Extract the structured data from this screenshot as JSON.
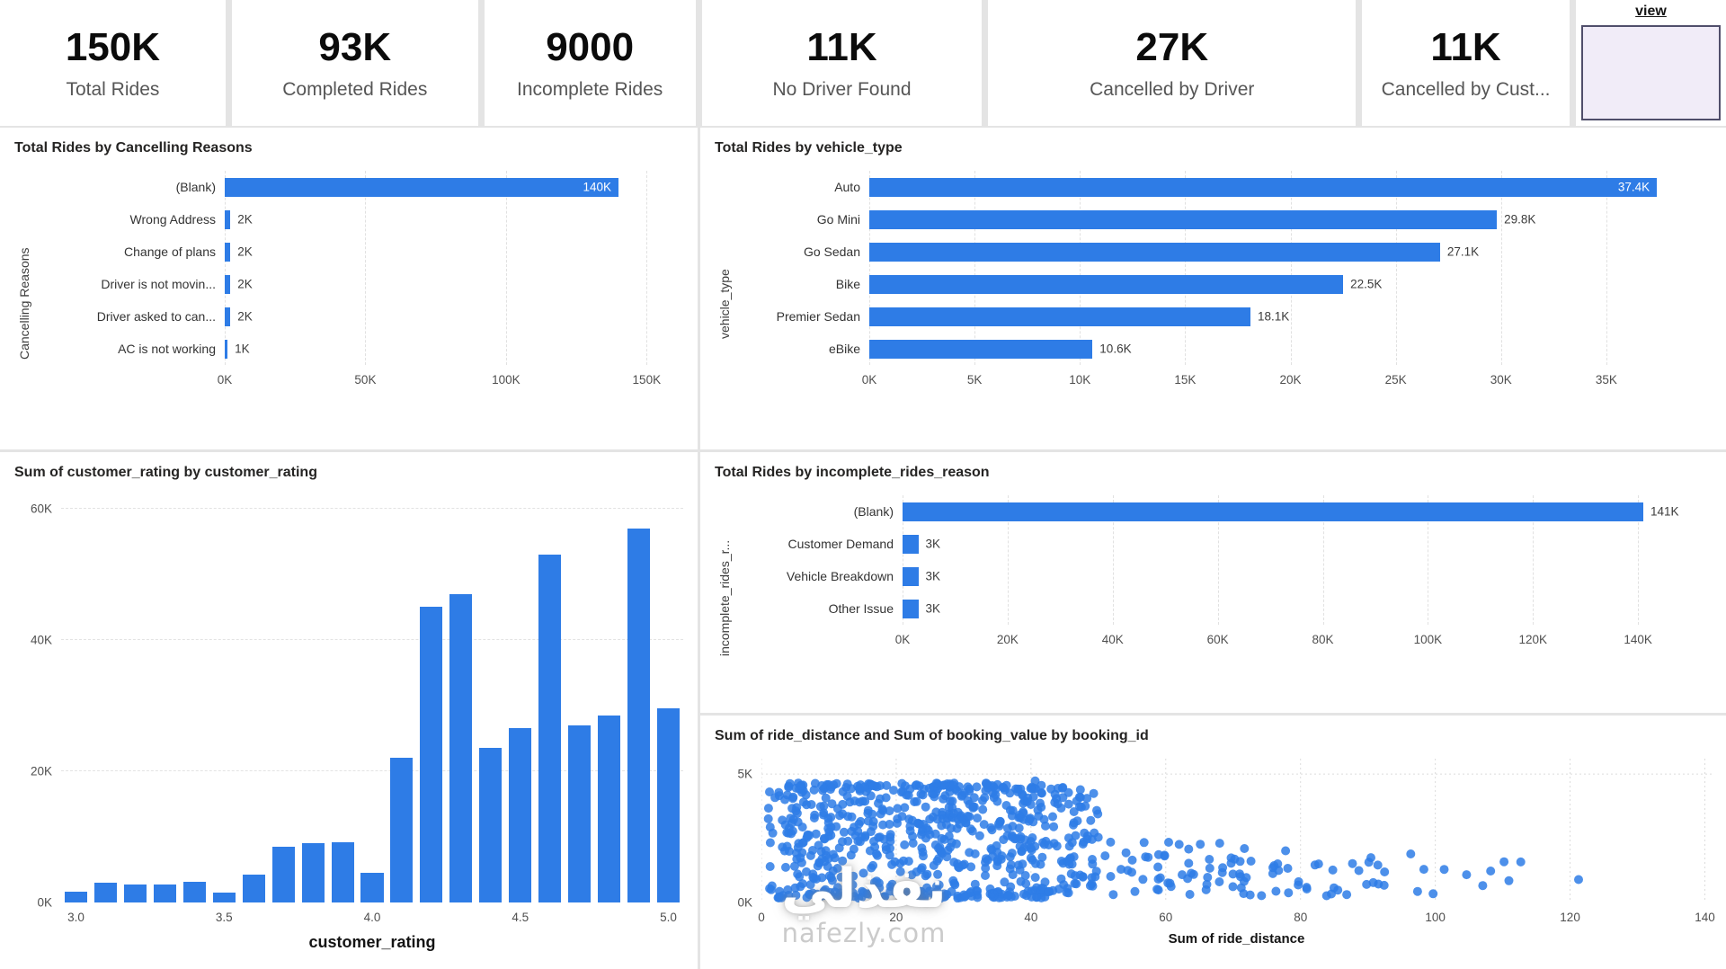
{
  "accent_color": "#2e7ce6",
  "kpis": [
    {
      "value": "150K",
      "label": "Total Rides"
    },
    {
      "value": "93K",
      "label": "Completed Rides"
    },
    {
      "value": "9000",
      "label": "Incomplete Rides"
    },
    {
      "value": "11K",
      "label": "No Driver Found"
    },
    {
      "value": "27K",
      "label": "Cancelled by Driver"
    },
    {
      "value": "11K",
      "label": "Cancelled by Cust..."
    }
  ],
  "slicer": {
    "title": "view"
  },
  "watermark": {
    "arabic": "نفذلي",
    "domain": "nafezly.com"
  },
  "chart_data": [
    {
      "id": "total_rides_by_cancelling_reasons",
      "type": "bar",
      "orientation": "horizontal",
      "title": "Total Rides by Cancelling Reasons",
      "ylabel": "Cancelling Reasons",
      "categories": [
        "(Blank)",
        "Wrong Address",
        "Change of plans",
        "Driver is not movin...",
        "Driver asked to can...",
        "AC is not working"
      ],
      "values": [
        140000,
        2000,
        2000,
        2000,
        2000,
        1000
      ],
      "value_labels": [
        "140K",
        "2K",
        "2K",
        "2K",
        "2K",
        "1K"
      ],
      "label_inside": [
        true,
        false,
        false,
        false,
        false,
        false
      ],
      "xlim": [
        0,
        163000
      ],
      "x_tick_values": [
        0,
        50000,
        100000,
        150000
      ],
      "x_tick_labels": [
        "0K",
        "50K",
        "100K",
        "150K"
      ],
      "grid": true,
      "legend": "none"
    },
    {
      "id": "total_rides_by_vehicle_type",
      "type": "bar",
      "orientation": "horizontal",
      "title": "Total Rides by vehicle_type",
      "ylabel": "vehicle_type",
      "categories": [
        "Auto",
        "Go Mini",
        "Go Sedan",
        "Bike",
        "Premier Sedan",
        "eBike"
      ],
      "values": [
        37400,
        29800,
        27100,
        22500,
        18100,
        10600
      ],
      "value_labels": [
        "37.4K",
        "29.8K",
        "27.1K",
        "22.5K",
        "18.1K",
        "10.6K"
      ],
      "label_inside": [
        true,
        false,
        false,
        false,
        false,
        false
      ],
      "xlim": [
        0,
        40000
      ],
      "x_tick_values": [
        0,
        5000,
        10000,
        15000,
        20000,
        25000,
        30000,
        35000
      ],
      "x_tick_labels": [
        "0K",
        "5K",
        "10K",
        "15K",
        "20K",
        "25K",
        "30K",
        "35K"
      ],
      "grid": true,
      "legend": "none"
    },
    {
      "id": "sum_of_customer_rating_by_customer_rating",
      "type": "column",
      "title": "Sum of customer_rating by customer_rating",
      "xlabel": "customer_rating",
      "x": [
        3.0,
        3.1,
        3.2,
        3.3,
        3.4,
        3.5,
        3.6,
        3.7,
        3.8,
        3.9,
        4.0,
        4.1,
        4.2,
        4.3,
        4.4,
        4.5,
        4.6,
        4.7,
        4.8,
        4.9,
        5.0
      ],
      "values": [
        1700,
        3000,
        2800,
        2800,
        3100,
        1500,
        4300,
        8500,
        9000,
        9200,
        4500,
        22000,
        45000,
        47000,
        23500,
        26500,
        53000,
        27000,
        28500,
        57000,
        29500
      ],
      "ylim": [
        0,
        62000
      ],
      "y_tick_values": [
        0,
        20000,
        40000,
        60000
      ],
      "y_tick_labels": [
        "0K",
        "20K",
        "40K",
        "60K"
      ],
      "x_tick_values": [
        3,
        3.5,
        4,
        4.5,
        5
      ],
      "x_tick_labels": [
        "3.0",
        "3.5",
        "4.0",
        "4.5",
        "5.0"
      ],
      "grid": true,
      "legend": "none"
    },
    {
      "id": "total_rides_by_incomplete_rides_reason",
      "type": "bar",
      "orientation": "horizontal",
      "title": "Total Rides by incomplete_rides_reason",
      "ylabel": "incomplete_rides_r...",
      "categories": [
        "(Blank)",
        "Customer Demand",
        "Vehicle Breakdown",
        "Other Issue"
      ],
      "values": [
        141000,
        3000,
        3000,
        3000
      ],
      "value_labels": [
        "141K",
        "3K",
        "3K",
        "3K"
      ],
      "label_inside": [
        false,
        false,
        false,
        false
      ],
      "xlim": [
        0,
        154000
      ],
      "x_tick_values": [
        0,
        20000,
        40000,
        60000,
        80000,
        100000,
        120000,
        140000
      ],
      "x_tick_labels": [
        "0K",
        "20K",
        "40K",
        "60K",
        "80K",
        "100K",
        "120K",
        "140K"
      ],
      "grid": true,
      "legend": "none"
    },
    {
      "id": "ride_distance_vs_booking_value",
      "type": "scatter",
      "title": "Sum of ride_distance and Sum of booking_value by booking_id",
      "xlabel": "Sum of ride_distance",
      "xlim": [
        0,
        141
      ],
      "ylim": [
        0,
        5600
      ],
      "x_tick_values": [
        0,
        20,
        40,
        60,
        80,
        100,
        120,
        140
      ],
      "x_tick_labels": [
        "0",
        "20",
        "40",
        "60",
        "80",
        "100",
        "120",
        "140"
      ],
      "y_tick_values": [
        0,
        5000
      ],
      "y_tick_labels": [
        "0K",
        "5K"
      ],
      "point_color": "#2e7ce6",
      "seed": 7,
      "clusters": [
        {
          "count": 520,
          "x_range": [
            1,
            50
          ],
          "y_range": [
            400,
            4400
          ]
        },
        {
          "count": 120,
          "x_range": [
            2,
            47
          ],
          "y_range": [
            150,
            450
          ]
        },
        {
          "count": 90,
          "x_range": [
            4,
            45
          ],
          "y_range": [
            4400,
            4650
          ]
        },
        {
          "count": 60,
          "x_range": [
            50,
            75
          ],
          "y_range": [
            250,
            2350
          ]
        },
        {
          "count": 35,
          "x_range": [
            75,
            100
          ],
          "y_range": [
            250,
            2050
          ]
        },
        {
          "count": 7,
          "x_range": [
            100,
            118
          ],
          "y_range": [
            600,
            1900
          ]
        },
        {
          "count": 1,
          "x_range": [
            120.5,
            121.5
          ],
          "y_range": [
            850,
            950
          ]
        },
        {
          "count": 1,
          "x_range": [
            40,
            41
          ],
          "y_range": [
            4650,
            4750
          ]
        }
      ],
      "grid": true,
      "legend": "none"
    }
  ]
}
